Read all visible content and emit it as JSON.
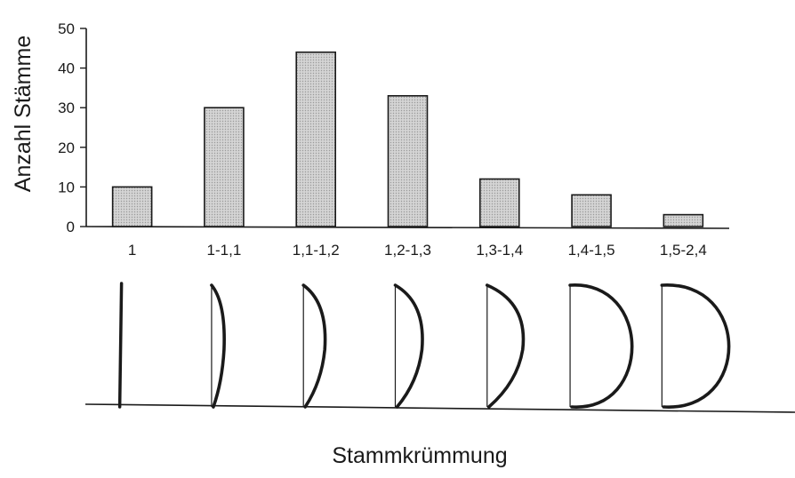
{
  "chart_data": {
    "type": "bar",
    "title": "",
    "xlabel": "Stammkrümmung",
    "ylabel": "Anzahl Stämme",
    "categories": [
      "1",
      "1-1,1",
      "1,1-1,2",
      "1,2-1,3",
      "1,3-1,4",
      "1,4-1,5",
      "1,5-2,4"
    ],
    "values": [
      10,
      30,
      44,
      33,
      12,
      8,
      3
    ],
    "ylim": [
      0,
      50
    ],
    "yticks": [
      0,
      10,
      20,
      30,
      40,
      50
    ],
    "grid": false,
    "legend": "none",
    "bar_fill": "#c8c8c8",
    "bar_stroke": "#1a1a1a",
    "curvature_icons": [
      "straight-stem-icon",
      "slightly-curved-stem-icon",
      "curved-stem-icon",
      "curved-stem-icon",
      "strongly-curved-stem-icon",
      "half-circle-stem-icon",
      "half-circle-stem-icon"
    ]
  }
}
